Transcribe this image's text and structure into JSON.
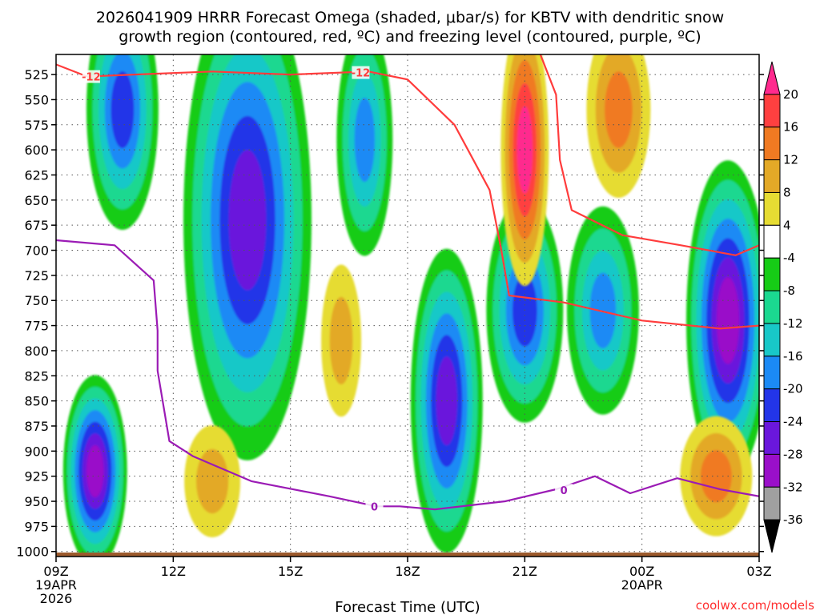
{
  "chart_data": {
    "type": "heatmap",
    "title_line1": "2026041909 HRRR Forecast Omega (shaded, μbar/s) for KBTV with dendritic snow",
    "title_line2": "growth region (contoured, red, ºC) and freezing level (contoured, purple, ºC)",
    "xlabel": "Forecast Time (UTC)",
    "ylabel": "",
    "credit": "coolwx.com/models",
    "x_ticks": [
      {
        "hour": 0,
        "label": "09Z",
        "sub1": "19APR",
        "sub2": "2026"
      },
      {
        "hour": 3,
        "label": "12Z",
        "sub1": "",
        "sub2": ""
      },
      {
        "hour": 6,
        "label": "15Z",
        "sub1": "",
        "sub2": ""
      },
      {
        "hour": 9,
        "label": "18Z",
        "sub1": "",
        "sub2": ""
      },
      {
        "hour": 12,
        "label": "21Z",
        "sub1": "",
        "sub2": ""
      },
      {
        "hour": 15,
        "label": "00Z",
        "sub1": "20APR",
        "sub2": ""
      },
      {
        "hour": 18,
        "label": "03Z",
        "sub1": "",
        "sub2": ""
      }
    ],
    "xlim_hours": [
      0,
      18
    ],
    "ylim_hpa": [
      505,
      1005
    ],
    "y_ticks": [
      525,
      550,
      575,
      600,
      625,
      650,
      675,
      700,
      725,
      750,
      775,
      800,
      825,
      850,
      875,
      900,
      925,
      950,
      975,
      1000
    ],
    "grid": true,
    "colorbar": {
      "levels": [
        20,
        16,
        12,
        8,
        4,
        -4,
        -8,
        -12,
        -16,
        -20,
        -24,
        -28,
        -32,
        -36
      ],
      "bins": [
        {
          "from": 20,
          "to": 24,
          "color": "#ff2a8e",
          "open": "top"
        },
        {
          "from": 16,
          "to": 20,
          "color": "#ff4040"
        },
        {
          "from": 12,
          "to": 16,
          "color": "#f07a22"
        },
        {
          "from": 8,
          "to": 12,
          "color": "#e3a927"
        },
        {
          "from": 4,
          "to": 8,
          "color": "#e6dc33"
        },
        {
          "from": -4,
          "to": 4,
          "color": "#ffffff"
        },
        {
          "from": -8,
          "to": -4,
          "color": "#16cc16"
        },
        {
          "from": -12,
          "to": -8,
          "color": "#1bd890"
        },
        {
          "from": -16,
          "to": -12,
          "color": "#18c8c8"
        },
        {
          "from": -20,
          "to": -16,
          "color": "#1b8af5"
        },
        {
          "from": -24,
          "to": -20,
          "color": "#2335e8"
        },
        {
          "from": -28,
          "to": -24,
          "color": "#6a17dc"
        },
        {
          "from": -32,
          "to": -28,
          "color": "#9a0fc9"
        },
        {
          "from": -36,
          "to": -32,
          "color": "#a0a0a0"
        },
        {
          "from": -40,
          "to": -36,
          "color": "#000000",
          "open": "bottom"
        }
      ]
    },
    "omega_centers": [
      {
        "name": "upper-left ascent",
        "hour": 1.7,
        "hpa": 560,
        "peak": -22
      },
      {
        "name": "mid-level ascent 14Z",
        "hour": 4.9,
        "hpa": 670,
        "peak": -26
      },
      {
        "name": "low-level ascent 10Z",
        "hour": 1.0,
        "hpa": 920,
        "peak": -28
      },
      {
        "name": "ascent 16-17Z",
        "hour": 7.9,
        "hpa": 590,
        "peak": -16
      },
      {
        "name": "low-level ascent 19Z",
        "hour": 10.0,
        "hpa": 850,
        "peak": -24
      },
      {
        "name": "ascent 21Z",
        "hour": 12.0,
        "hpa": 760,
        "peak": -20
      },
      {
        "name": "ascent 00Z",
        "hour": 14.0,
        "hpa": 760,
        "peak": -18
      },
      {
        "name": "strong ascent 02Z",
        "hour": 17.2,
        "hpa": 770,
        "peak": -30
      },
      {
        "name": "strong descent 21Z",
        "hour": 12.0,
        "hpa": 600,
        "peak": 22
      },
      {
        "name": "descent 23Z",
        "hour": 14.4,
        "hpa": 560,
        "peak": 12
      },
      {
        "name": "descent 01Z",
        "hour": 16.9,
        "hpa": 925,
        "peak": 14
      },
      {
        "name": "descent 12-13Z",
        "hour": 4.0,
        "hpa": 930,
        "peak": 8
      },
      {
        "name": "descent 16Z",
        "hour": 7.3,
        "hpa": 790,
        "peak": 10
      }
    ],
    "dgz_contours": [
      {
        "label": "-12",
        "points": [
          [
            0,
            515
          ],
          [
            0.8,
            527
          ],
          [
            2,
            525
          ],
          [
            4,
            522
          ],
          [
            6,
            525
          ],
          [
            8,
            522
          ],
          [
            9,
            530
          ],
          [
            10.2,
            575
          ],
          [
            11.1,
            640
          ],
          [
            11.4,
            700
          ],
          [
            11.6,
            745
          ],
          [
            13,
            752
          ],
          [
            15,
            770
          ],
          [
            17,
            778
          ],
          [
            18,
            775
          ]
        ]
      },
      {
        "label": "",
        "points": [
          [
            12.4,
            505
          ],
          [
            12.8,
            545
          ],
          [
            12.9,
            610
          ],
          [
            13.2,
            660
          ],
          [
            14.5,
            685
          ],
          [
            16,
            695
          ],
          [
            17.4,
            705
          ],
          [
            18,
            695
          ]
        ]
      }
    ],
    "freezing_level": {
      "label": "0",
      "points": [
        [
          0,
          690
        ],
        [
          1.5,
          695
        ],
        [
          2.5,
          730
        ],
        [
          2.6,
          780
        ],
        [
          2.6,
          820
        ],
        [
          2.9,
          890
        ],
        [
          3.5,
          905
        ],
        [
          5,
          930
        ],
        [
          7,
          945
        ],
        [
          8.2,
          955
        ],
        [
          8.8,
          955
        ],
        [
          9.7,
          958
        ],
        [
          11.5,
          950
        ],
        [
          12.8,
          938
        ],
        [
          13.8,
          925
        ],
        [
          14.7,
          942
        ],
        [
          15.9,
          927
        ],
        [
          17,
          938
        ],
        [
          18,
          945
        ]
      ]
    },
    "terrain_hpa": 1001
  }
}
